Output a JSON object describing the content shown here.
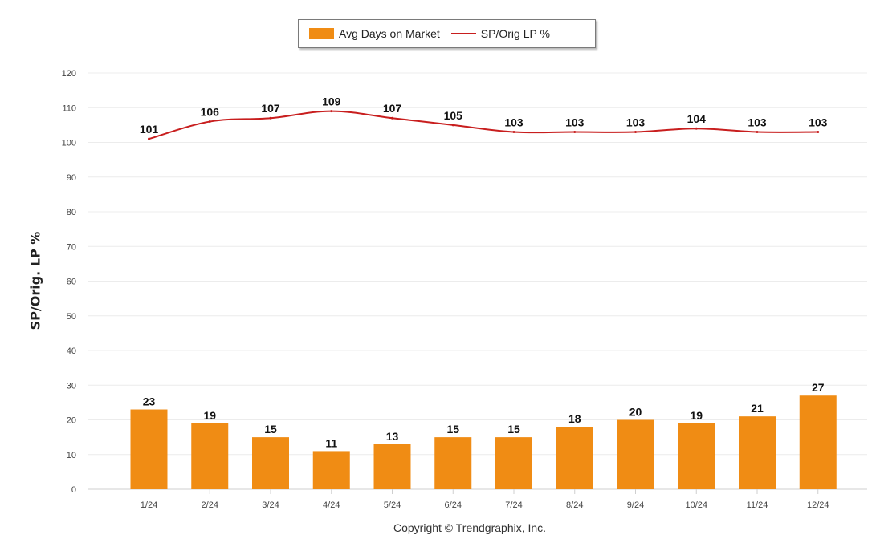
{
  "chart_data": {
    "type": "bar",
    "categories": [
      "1/24",
      "2/24",
      "3/24",
      "4/24",
      "5/24",
      "6/24",
      "7/24",
      "8/24",
      "9/24",
      "10/24",
      "11/24",
      "12/24"
    ],
    "series": [
      {
        "name": "Avg Days on Market",
        "type": "bar",
        "color": "#f08c14",
        "values": [
          23,
          19,
          15,
          11,
          13,
          15,
          15,
          18,
          20,
          19,
          21,
          27
        ]
      },
      {
        "name": "SP/Orig LP %",
        "type": "line",
        "color": "#c81e1e",
        "values": [
          101,
          106,
          107,
          109,
          107,
          105,
          103,
          103,
          103,
          104,
          103,
          103
        ]
      }
    ],
    "ylabel": "SP/Orig. LP %",
    "ylim": [
      0,
      120
    ],
    "yticks": [
      0,
      10,
      20,
      30,
      40,
      50,
      60,
      70,
      80,
      90,
      100,
      110,
      120
    ],
    "grid": true,
    "legend": "top-center"
  },
  "copyright": "Copyright © Trendgraphix, Inc."
}
